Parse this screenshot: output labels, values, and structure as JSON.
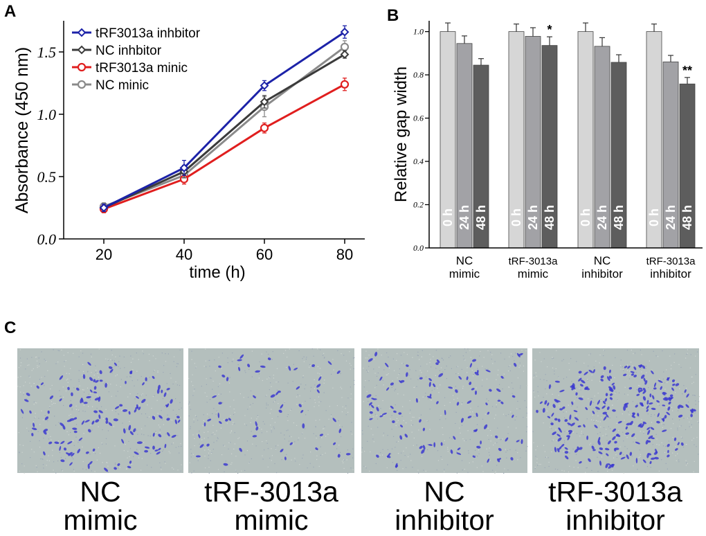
{
  "panel_labels": {
    "a": "A",
    "b": "B",
    "c": "C"
  },
  "colors": {
    "tRF_inhibitor": "#1c22a8",
    "NC_inhibitor": "#3b3b3b",
    "tRF_mimic": "#e01e1e",
    "NC_mimic": "#8a8a8a",
    "bar_0h": "#d6d6d6",
    "bar_24h": "#a2a2a6",
    "bar_48h": "#5d5d5d",
    "stain": "#3c3ad0",
    "background_field": "#b4bfbd"
  },
  "chart_data": [
    {
      "type": "line",
      "title": "",
      "xlabel": "time (h)",
      "ylabel": "Absorbance (450 nm)",
      "x": [
        20,
        40,
        60,
        80
      ],
      "x_tick_labels": [
        "20",
        "40",
        "60",
        "80"
      ],
      "xlim": [
        10,
        85
      ],
      "ylim": [
        0,
        1.75
      ],
      "y_ticks": [
        0,
        0.5,
        1.0,
        1.5
      ],
      "y_tick_labels": [
        "0.0",
        "0.5",
        "1.0",
        "1.5"
      ],
      "legend_position": "top-left",
      "grid": false,
      "series": [
        {
          "name": "tRF3013a inhbitor",
          "marker": "diamond",
          "color": "#1c22a8",
          "values": [
            0.25,
            0.57,
            1.23,
            1.66
          ],
          "errors": [
            0.03,
            0.06,
            0.04,
            0.05
          ]
        },
        {
          "name": "NC inhbitor",
          "marker": "diamond",
          "color": "#3b3b3b",
          "values": [
            0.25,
            0.54,
            1.1,
            1.48
          ],
          "errors": [
            0.03,
            0.05,
            0.05,
            0.03
          ]
        },
        {
          "name": "tRF3013a minic",
          "marker": "circle",
          "color": "#e01e1e",
          "values": [
            0.24,
            0.48,
            0.89,
            1.24
          ],
          "errors": [
            0.03,
            0.04,
            0.04,
            0.05
          ]
        },
        {
          "name": "NC minic",
          "marker": "circle",
          "color": "#8a8a8a",
          "values": [
            0.26,
            0.51,
            1.06,
            1.54
          ],
          "errors": [
            0.03,
            0.05,
            0.08,
            0.05
          ]
        }
      ]
    },
    {
      "type": "bar",
      "title": "",
      "xlabel": "",
      "ylabel": "Relative gap width",
      "ylim": [
        0,
        1.05
      ],
      "y_ticks": [
        0,
        0.2,
        0.4,
        0.6,
        0.8,
        1.0
      ],
      "y_tick_labels": [
        "0.0",
        "0.2",
        "0.4",
        "0.6",
        "0.8",
        "1.0"
      ],
      "grid": false,
      "bar_labels": [
        "0 h",
        "24 h",
        "48 h"
      ],
      "groups": [
        {
          "label_line1": "NC",
          "label_line2": "mimic",
          "values": [
            1.0,
            0.945,
            0.845
          ],
          "errors": [
            0.04,
            0.035,
            0.03
          ],
          "marks": [
            "",
            "",
            ""
          ]
        },
        {
          "label_line1": "tRF-3013a",
          "label_line2": "mimic",
          "values": [
            1.0,
            0.978,
            0.936
          ],
          "errors": [
            0.035,
            0.04,
            0.04
          ],
          "marks": [
            "",
            "",
            "*"
          ]
        },
        {
          "label_line1": "NC",
          "label_line2": "inhibitor",
          "values": [
            1.0,
            0.932,
            0.858
          ],
          "errors": [
            0.04,
            0.04,
            0.035
          ],
          "marks": [
            "",
            "",
            ""
          ]
        },
        {
          "label_line1": "tRF-3013a",
          "label_line2": "inhibitor",
          "values": [
            1.0,
            0.86,
            0.758
          ],
          "errors": [
            0.035,
            0.03,
            0.03
          ],
          "marks": [
            "",
            "",
            "**"
          ]
        }
      ]
    }
  ],
  "micrographs": [
    {
      "caption_line1": "NC",
      "caption_line2": "mimic",
      "cell_count": 130,
      "cluster": "center"
    },
    {
      "caption_line1": "tRF-3013a",
      "caption_line2": "mimic",
      "cell_count": 55,
      "cluster": "spread"
    },
    {
      "caption_line1": "NC",
      "caption_line2": "inhibitor",
      "cell_count": 100,
      "cluster": "spread"
    },
    {
      "caption_line1": "tRF-3013a",
      "caption_line2": "inhibitor",
      "cell_count": 230,
      "cluster": "center"
    }
  ]
}
